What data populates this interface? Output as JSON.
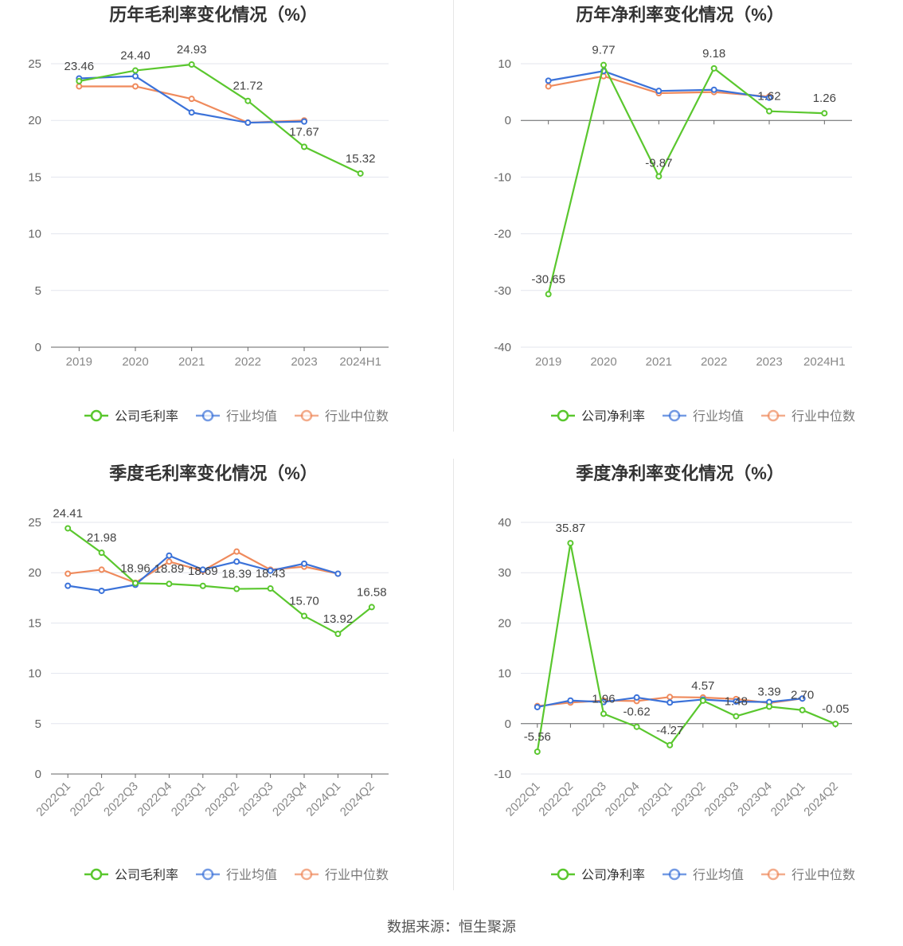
{
  "colors": {
    "company": "#5ac72e",
    "avg": "#3b72d9",
    "median": "#ef8a5c"
  },
  "source": "数据来源：恒生聚源",
  "legend_labels": {
    "gross": [
      "公司毛利率",
      "行业均值",
      "行业中位数"
    ],
    "net": [
      "公司净利率",
      "行业均值",
      "行业中位数"
    ]
  },
  "chart_data": [
    {
      "id": "annual-gross",
      "type": "line",
      "title": "历年毛利率变化情况（%）",
      "categories": [
        "2019",
        "2020",
        "2021",
        "2022",
        "2023",
        "2024H1"
      ],
      "ylim": [
        0,
        25
      ],
      "yticks": [
        0,
        5,
        10,
        15,
        20,
        25
      ],
      "series": [
        {
          "name": "公司毛利率",
          "values": [
            23.46,
            24.4,
            24.93,
            21.72,
            17.67,
            15.32
          ],
          "labels": [
            "23.46",
            "24.40",
            "24.93",
            "21.72",
            "17.67",
            "15.32"
          ]
        },
        {
          "name": "行业均值",
          "values": [
            23.7,
            23.9,
            20.7,
            19.8,
            19.9,
            null
          ]
        },
        {
          "name": "行业中位数",
          "values": [
            23.0,
            23.0,
            21.9,
            19.8,
            20.0,
            null
          ]
        }
      ]
    },
    {
      "id": "annual-net",
      "type": "line",
      "title": "历年净利率变化情况（%）",
      "categories": [
        "2019",
        "2020",
        "2021",
        "2022",
        "2023",
        "2024H1"
      ],
      "ylim": [
        -40,
        10
      ],
      "yticks": [
        -40,
        -30,
        -20,
        -10,
        0,
        10
      ],
      "series": [
        {
          "name": "公司净利率",
          "values": [
            -30.65,
            9.77,
            -9.87,
            9.18,
            1.62,
            1.26
          ],
          "labels": [
            "-30.65",
            "9.77",
            "-9.87",
            "9.18",
            "1.62",
            "1.26"
          ]
        },
        {
          "name": "行业均值",
          "values": [
            7.0,
            8.7,
            5.2,
            5.4,
            4.0,
            null
          ]
        },
        {
          "name": "行业中位数",
          "values": [
            6.0,
            7.8,
            4.8,
            5.0,
            4.2,
            null
          ]
        }
      ]
    },
    {
      "id": "quarterly-gross",
      "type": "line",
      "title": "季度毛利率变化情况（%）",
      "categories": [
        "2022Q1",
        "2022Q2",
        "2022Q3",
        "2022Q4",
        "2023Q1",
        "2023Q2",
        "2023Q3",
        "2023Q4",
        "2024Q1",
        "2024Q2"
      ],
      "ylim": [
        0,
        25
      ],
      "yticks": [
        0,
        5,
        10,
        15,
        20,
        25
      ],
      "series": [
        {
          "name": "公司毛利率",
          "values": [
            24.41,
            21.98,
            18.96,
            18.89,
            18.69,
            18.39,
            18.43,
            15.7,
            13.92,
            16.58
          ],
          "labels": [
            "24.41",
            "21.98",
            "18.96",
            "18.89",
            "18.69",
            "18.39",
            "18.43",
            "15.70",
            "13.92",
            "16.58"
          ]
        },
        {
          "name": "行业均值",
          "values": [
            18.7,
            18.2,
            18.8,
            21.7,
            20.3,
            21.1,
            20.2,
            20.9,
            19.9,
            null
          ]
        },
        {
          "name": "行业中位数",
          "values": [
            19.9,
            20.3,
            19.0,
            21.1,
            20.2,
            22.1,
            20.3,
            20.6,
            19.9,
            null
          ]
        }
      ]
    },
    {
      "id": "quarterly-net",
      "type": "line",
      "title": "季度净利率变化情况（%）",
      "categories": [
        "2022Q1",
        "2022Q2",
        "2022Q3",
        "2022Q4",
        "2023Q1",
        "2023Q2",
        "2023Q3",
        "2023Q4",
        "2024Q1",
        "2024Q2"
      ],
      "ylim": [
        -10,
        40
      ],
      "yticks": [
        -10,
        0,
        10,
        20,
        30,
        40
      ],
      "series": [
        {
          "name": "公司净利率",
          "values": [
            -5.56,
            35.87,
            1.96,
            -0.62,
            -4.27,
            4.57,
            1.48,
            3.39,
            2.7,
            -0.05
          ],
          "labels": [
            "-5.56",
            "35.87",
            "1.96",
            "-0.62",
            "-4.27",
            "4.57",
            "1.48",
            "3.39",
            "2.70",
            "-0.05"
          ]
        },
        {
          "name": "行业均值",
          "values": [
            3.3,
            4.6,
            4.3,
            5.2,
            4.2,
            4.8,
            4.4,
            4.3,
            5.0,
            null
          ]
        },
        {
          "name": "行业中位数",
          "values": [
            3.5,
            4.2,
            4.6,
            4.5,
            5.3,
            5.2,
            4.9,
            4.1,
            5.0,
            null
          ]
        }
      ]
    }
  ]
}
